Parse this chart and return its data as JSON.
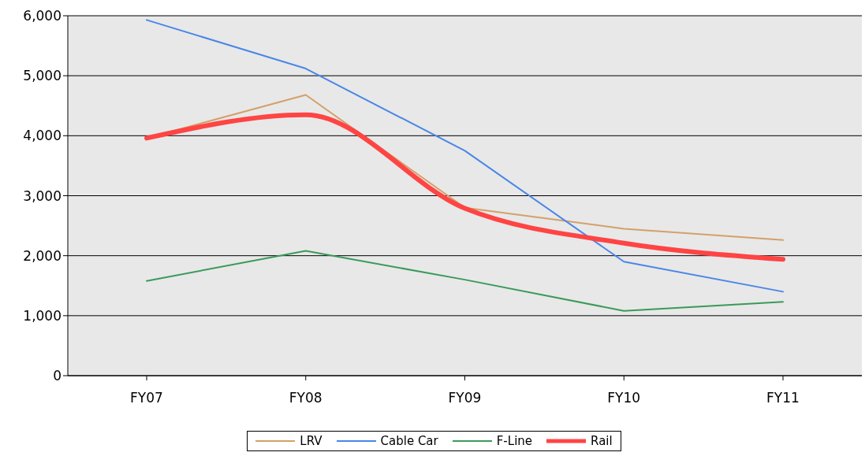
{
  "chart_data": {
    "type": "line",
    "categories": [
      "FY07",
      "FY08",
      "FY09",
      "FY10",
      "FY11"
    ],
    "series": [
      {
        "name": "LRV",
        "color": "#d4a06a",
        "values": [
          3960,
          4680,
          2800,
          2450,
          2260
        ]
      },
      {
        "name": "Cable Car",
        "color": "#4a86e8",
        "values": [
          5930,
          5120,
          3750,
          1900,
          1400
        ]
      },
      {
        "name": "F-Line",
        "color": "#3a9a5a",
        "values": [
          1580,
          2080,
          1600,
          1080,
          1230
        ]
      },
      {
        "name": "Rail",
        "color": "#ff4444",
        "values": [
          3960,
          4350,
          2790,
          2210,
          1940
        ]
      }
    ],
    "ylim": [
      0,
      6000
    ],
    "yticks": [
      {
        "value": 0,
        "label": "0"
      },
      {
        "value": 1000,
        "label": "1,000"
      },
      {
        "value": 2000,
        "label": "2,000"
      },
      {
        "value": 3000,
        "label": "3,000"
      },
      {
        "value": 4000,
        "label": "4,000"
      },
      {
        "value": 5000,
        "label": "5,000"
      },
      {
        "value": 6000,
        "label": "6,000"
      }
    ],
    "grid": "y",
    "legend": "bottom",
    "marker": "none"
  }
}
